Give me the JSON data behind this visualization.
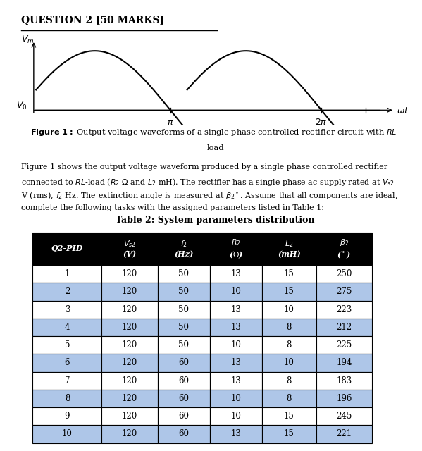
{
  "title_text": "QUESTION 2 [50 MARKS]",
  "table_title": "Table 2: System parameters distribution",
  "rows": [
    [
      1,
      120,
      50,
      13,
      15,
      250
    ],
    [
      2,
      120,
      50,
      10,
      15,
      275
    ],
    [
      3,
      120,
      50,
      13,
      10,
      223
    ],
    [
      4,
      120,
      50,
      13,
      8,
      212
    ],
    [
      5,
      120,
      50,
      10,
      8,
      225
    ],
    [
      6,
      120,
      60,
      13,
      10,
      194
    ],
    [
      7,
      120,
      60,
      13,
      8,
      183
    ],
    [
      8,
      120,
      60,
      10,
      8,
      196
    ],
    [
      9,
      120,
      60,
      10,
      15,
      245
    ],
    [
      10,
      120,
      60,
      13,
      15,
      221
    ]
  ],
  "header_bg": "#000000",
  "header_fg": "#ffffff",
  "row_alt_bg": "#aec6e8",
  "row_normal_bg": "#ffffff",
  "bg_color": "#ffffff"
}
